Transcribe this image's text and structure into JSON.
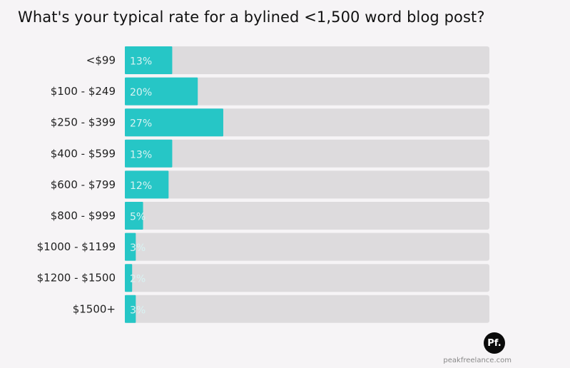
{
  "chart_data": {
    "type": "bar",
    "orientation": "horizontal",
    "title": "What's your typical rate for a bylined <1,500 word blog post?",
    "categories": [
      "<$99",
      "$100 - $249",
      "$250 - $399",
      "$400 - $599",
      "$600 - $799",
      "$800 - $999",
      "$1000 - $1199",
      "$1200 - $1500",
      "$1500+"
    ],
    "values": [
      13,
      20,
      27,
      13,
      12,
      5,
      3,
      2,
      3
    ],
    "value_labels": [
      "13%",
      "20%",
      "27%",
      "13%",
      "12%",
      "5%",
      "3%",
      "2%",
      "3%"
    ],
    "xlim": [
      0,
      100
    ],
    "unit": "%",
    "colors": {
      "bar": "#26c6c6",
      "track": "#dddbdd",
      "background": "#f6f4f6"
    },
    "grid": false,
    "legend": "none"
  },
  "footer": {
    "logo_text": "Pf.",
    "site": "peakfreelance.com"
  }
}
